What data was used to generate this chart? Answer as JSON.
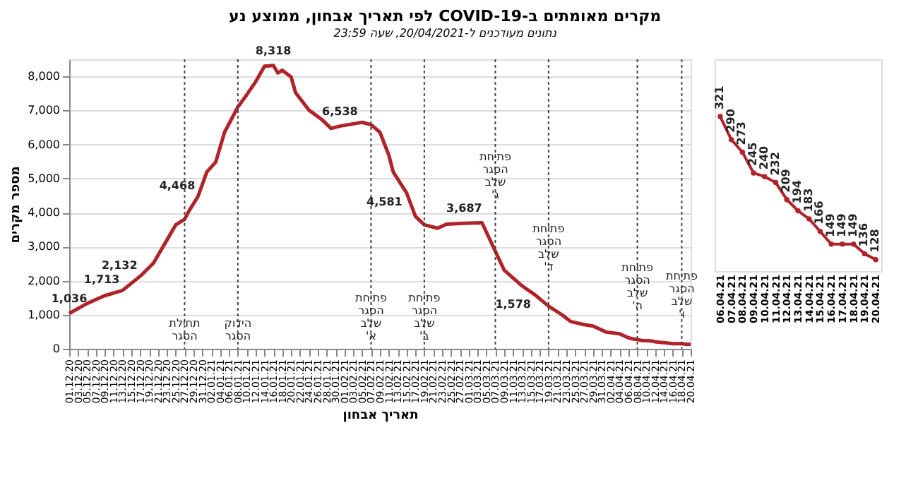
{
  "chart_data": [
    {
      "type": "line",
      "title": "מקרים מאומתים ב-COVID-19 לפי תאריך אבחון, ממוצע נע",
      "subtitle": "נתונים מעודכנים ל-20/04/2021, שעה 23:59",
      "xlabel": "תאריך אבחון",
      "ylabel": "מספר מקרים",
      "x": [
        "2020-12-01",
        "2020-12-05",
        "2020-12-09",
        "2020-12-13",
        "2020-12-17",
        "2020-12-20",
        "2020-12-23",
        "2020-12-25",
        "2020-12-27",
        "2020-12-28",
        "2020-12-30",
        "2021-01-01",
        "2021-01-03",
        "2021-01-05",
        "2021-01-08",
        "2021-01-10",
        "2021-01-12",
        "2021-01-14",
        "2021-01-16",
        "2021-01-17",
        "2021-01-18",
        "2021-01-20",
        "2021-01-21",
        "2021-01-24",
        "2021-01-27",
        "2021-01-29",
        "2021-01-31",
        "2021-02-05",
        "2021-02-07",
        "2021-02-09",
        "2021-02-11",
        "2021-02-12",
        "2021-02-15",
        "2021-02-17",
        "2021-02-19",
        "2021-02-22",
        "2021-02-24",
        "2021-02-28",
        "2021-03-04",
        "2021-03-09",
        "2021-03-13",
        "2021-03-16",
        "2021-03-19",
        "2021-03-22",
        "2021-03-24",
        "2021-03-27",
        "2021-03-29",
        "2021-04-01",
        "2021-04-04",
        "2021-04-06",
        "2021-04-07",
        "2021-04-08",
        "2021-04-09",
        "2021-04-10",
        "2021-04-11",
        "2021-04-12",
        "2021-04-13",
        "2021-04-14",
        "2021-04-15",
        "2021-04-16",
        "2021-04-17",
        "2021-04-18",
        "2021-04-19",
        "2021-04-20"
      ],
      "series": [
        {
          "color": "#b0232a",
          "values": [
            1036,
            1330,
            1560,
            1713,
            2132,
            2520,
            3190,
            3640,
            3800,
            4050,
            4468,
            5190,
            5480,
            6360,
            7100,
            7460,
            7840,
            8300,
            8318,
            8100,
            8180,
            7980,
            7520,
            7010,
            6720,
            6470,
            6538,
            6650,
            6580,
            6360,
            5690,
            5190,
            4581,
            3890,
            3640,
            3540,
            3660,
            3687,
            3700,
            2310,
            1850,
            1578,
            1250,
            1000,
            800,
            710,
            670,
            490,
            440,
            321,
            290,
            273,
            245,
            240,
            232,
            209,
            194,
            183,
            166,
            149,
            149,
            149,
            136,
            128
          ]
        }
      ],
      "xlim": [
        "2020-12-01",
        "2021-04-20"
      ],
      "ylim": [
        0,
        8500
      ],
      "xticks": [
        {
          "value": "2020-12-01",
          "label": "01.12.20"
        },
        {
          "value": "2020-12-03",
          "label": "03.12.20"
        },
        {
          "value": "2020-12-05",
          "label": "05.12.20"
        },
        {
          "value": "2020-12-07",
          "label": "07.12.20"
        },
        {
          "value": "2020-12-09",
          "label": "09.12.20"
        },
        {
          "value": "2020-12-11",
          "label": "11.12.20"
        },
        {
          "value": "2020-12-13",
          "label": "13.12.20"
        },
        {
          "value": "2020-12-15",
          "label": "15.12.20"
        },
        {
          "value": "2020-12-17",
          "label": "17.12.20"
        },
        {
          "value": "2020-12-19",
          "label": "19.12.20"
        },
        {
          "value": "2020-12-21",
          "label": "21.12.20"
        },
        {
          "value": "2020-12-23",
          "label": "23.12.20"
        },
        {
          "value": "2020-12-25",
          "label": "25.12.20"
        },
        {
          "value": "2020-12-27",
          "label": "27.12.20"
        },
        {
          "value": "2020-12-29",
          "label": "29.12.20"
        },
        {
          "value": "2020-12-31",
          "label": "31.12.20"
        },
        {
          "value": "2021-01-02",
          "label": "02.01.21"
        },
        {
          "value": "2021-01-04",
          "label": "04.01.21"
        },
        {
          "value": "2021-01-06",
          "label": "06.01.21"
        },
        {
          "value": "2021-01-08",
          "label": "08.01.21"
        },
        {
          "value": "2021-01-10",
          "label": "10.01.21"
        },
        {
          "value": "2021-01-12",
          "label": "12.01.21"
        },
        {
          "value": "2021-01-14",
          "label": "14.01.21"
        },
        {
          "value": "2021-01-16",
          "label": "16.01.21"
        },
        {
          "value": "2021-01-18",
          "label": "18.01.21"
        },
        {
          "value": "2021-01-20",
          "label": "20.01.21"
        },
        {
          "value": "2021-01-22",
          "label": "22.01.21"
        },
        {
          "value": "2021-01-24",
          "label": "24.01.21"
        },
        {
          "value": "2021-01-26",
          "label": "26.01.21"
        },
        {
          "value": "2021-01-28",
          "label": "28.01.21"
        },
        {
          "value": "2021-01-30",
          "label": "30.01.21"
        },
        {
          "value": "2021-02-01",
          "label": "01.02.21"
        },
        {
          "value": "2021-02-03",
          "label": "03.02.21"
        },
        {
          "value": "2021-02-05",
          "label": "05.02.21"
        },
        {
          "value": "2021-02-07",
          "label": "07.02.21"
        },
        {
          "value": "2021-02-09",
          "label": "09.02.21"
        },
        {
          "value": "2021-02-11",
          "label": "11.02.21"
        },
        {
          "value": "2021-02-13",
          "label": "13.02.21"
        },
        {
          "value": "2021-02-15",
          "label": "15.02.21"
        },
        {
          "value": "2021-02-17",
          "label": "17.02.21"
        },
        {
          "value": "2021-02-19",
          "label": "19.02.21"
        },
        {
          "value": "2021-02-21",
          "label": "21.02.21"
        },
        {
          "value": "2021-02-23",
          "label": "23.02.21"
        },
        {
          "value": "2021-02-25",
          "label": "25.02.21"
        },
        {
          "value": "2021-02-27",
          "label": "27.02.21"
        },
        {
          "value": "2021-03-01",
          "label": "01.03.21"
        },
        {
          "value": "2021-03-03",
          "label": "03.03.21"
        },
        {
          "value": "2021-03-05",
          "label": "05.03.21"
        },
        {
          "value": "2021-03-07",
          "label": "07.03.21"
        },
        {
          "value": "2021-03-09",
          "label": "09.03.21"
        },
        {
          "value": "2021-03-11",
          "label": "11.03.21"
        },
        {
          "value": "2021-03-13",
          "label": "13.03.21"
        },
        {
          "value": "2021-03-15",
          "label": "15.03.21"
        },
        {
          "value": "2021-03-17",
          "label": "17.03.21"
        },
        {
          "value": "2021-03-19",
          "label": "19.03.21"
        },
        {
          "value": "2021-03-21",
          "label": "21.03.21"
        },
        {
          "value": "2021-03-23",
          "label": "23.03.21"
        },
        {
          "value": "2021-03-25",
          "label": "25.03.21"
        },
        {
          "value": "2021-03-27",
          "label": "27.03.21"
        },
        {
          "value": "2021-03-29",
          "label": "29.03.21"
        },
        {
          "value": "2021-03-31",
          "label": "31.03.21"
        },
        {
          "value": "2021-04-02",
          "label": "02.04.21"
        },
        {
          "value": "2021-04-04",
          "label": "04.04.21"
        },
        {
          "value": "2021-04-06",
          "label": "06.04.21"
        },
        {
          "value": "2021-04-08",
          "label": "08.04.21"
        },
        {
          "value": "2021-04-10",
          "label": "10.04.21"
        },
        {
          "value": "2021-04-12",
          "label": "12.04.21"
        },
        {
          "value": "2021-04-14",
          "label": "14.04.21"
        },
        {
          "value": "2021-04-16",
          "label": "16.04.21"
        },
        {
          "value": "2021-04-18",
          "label": "18.04.21"
        },
        {
          "value": "2021-04-20",
          "label": "20.04.21"
        }
      ],
      "yticks": [
        0,
        {
          "value": 1000,
          "label": "1,000"
        },
        {
          "value": 2000,
          "label": "2,000"
        },
        {
          "value": 3000,
          "label": "3,000"
        },
        {
          "value": 4000,
          "label": "4,000"
        },
        {
          "value": 5000,
          "label": "5,000"
        },
        {
          "value": 6000,
          "label": "6,000"
        },
        {
          "value": 7000,
          "label": "7,000"
        },
        {
          "value": 8000,
          "label": "8,000"
        }
      ],
      "grid": "y",
      "line_style": "solid",
      "ref_lines": [
        {
          "axis": "x",
          "value": "2020-12-27",
          "label": "תחילת הסגר",
          "line_style": "dotted"
        },
        {
          "axis": "x",
          "value": "2021-01-08",
          "label": "הידוק הסגר",
          "line_style": "dotted"
        },
        {
          "axis": "x",
          "value": "2021-02-07",
          "label": "פתיחת הסגר שלב א'",
          "line_style": "dotted"
        },
        {
          "axis": "x",
          "value": "2021-02-19",
          "label": "פתיחת הסגר שלב ב'",
          "line_style": "dotted"
        },
        {
          "axis": "x",
          "value": "2021-03-07",
          "label": "פתיחת הסגר שלב ג'",
          "line_style": "dotted"
        },
        {
          "axis": "x",
          "value": "2021-03-19",
          "label": "פתיחת הסגר שלב ד'",
          "line_style": "dotted"
        },
        {
          "axis": "x",
          "value": "2021-04-08",
          "label": "פתיחת הסגר שלב ה'",
          "line_style": "dotted"
        },
        {
          "axis": "x",
          "value": "2021-04-18",
          "label": "פתיחת הסגר שלב ו'",
          "line_style": "dotted"
        }
      ],
      "annotations": [
        {
          "text": "1,036",
          "x": "2020-12-01",
          "y": 1036
        },
        {
          "text": "1,713",
          "x": "2020-12-13",
          "y": 1713
        },
        {
          "text": "2,132",
          "x": "2020-12-17",
          "y": 2132
        },
        {
          "text": "4,468",
          "x": "2020-12-30",
          "y": 4468
        },
        {
          "text": "8,318",
          "x": "2021-01-16",
          "y": 8318
        },
        {
          "text": "6,538",
          "x": "2021-01-31",
          "y": 6538
        },
        {
          "text": "4,581",
          "x": "2021-02-15",
          "y": 4581
        },
        {
          "text": "3,687",
          "x": "2021-02-28",
          "y": 3687
        },
        {
          "text": "1,578",
          "x": "2021-03-16",
          "y": 1578
        }
      ]
    },
    {
      "type": "line",
      "categories": [
        "06.04.21",
        "07.04.21",
        "08.04.21",
        "09.04.21",
        "10.04.21",
        "11.04.21",
        "12.04.21",
        "13.04.21",
        "14.04.21",
        "15.04.21",
        "16.04.21",
        "17.04.21",
        "18.04.21",
        "19.04.21",
        "20.04.21"
      ],
      "series": [
        {
          "color": "#b0232a",
          "values": [
            321,
            290,
            273,
            245,
            240,
            232,
            209,
            194,
            183,
            166,
            149,
            149,
            149,
            136,
            128
          ]
        }
      ],
      "data_labels": true,
      "marker": "circle",
      "line_style": "solid",
      "grid": false
    }
  ]
}
